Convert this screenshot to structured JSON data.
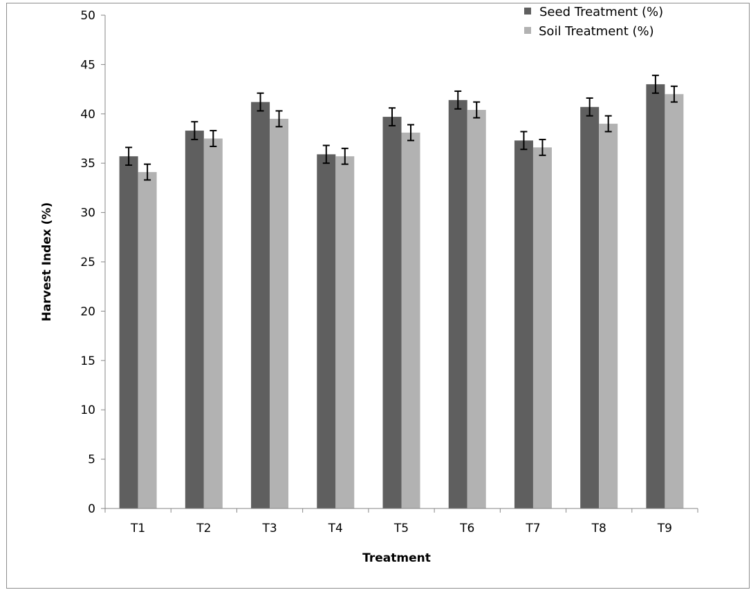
{
  "chart_data": {
    "type": "bar",
    "categories": [
      "T1",
      "T2",
      "T3",
      "T4",
      "T5",
      "T6",
      "T7",
      "T8",
      "T9"
    ],
    "series": [
      {
        "name": "Seed Treatment (%)",
        "color": "#5f5f5f",
        "values": [
          35.7,
          38.3,
          41.2,
          35.9,
          39.7,
          41.4,
          37.3,
          40.7,
          43.0
        ],
        "errors": [
          0.9,
          0.9,
          0.9,
          0.9,
          0.9,
          0.9,
          0.9,
          0.9,
          0.9
        ]
      },
      {
        "name": "Soil Treatment (%)",
        "color": "#b2b2b2",
        "values": [
          34.1,
          37.5,
          39.5,
          35.7,
          38.1,
          40.4,
          36.6,
          39.0,
          42.0
        ],
        "errors": [
          0.8,
          0.8,
          0.8,
          0.8,
          0.8,
          0.8,
          0.8,
          0.8,
          0.8
        ]
      }
    ],
    "xlabel": "Treatment",
    "ylabel": "Harvest Index (%)",
    "ylim": [
      0,
      50
    ],
    "yticks": [
      "0",
      "5",
      "10",
      "15",
      "20",
      "25",
      "30",
      "35",
      "40",
      "45",
      "50"
    ],
    "grid": false,
    "legend_position": "top-right"
  }
}
